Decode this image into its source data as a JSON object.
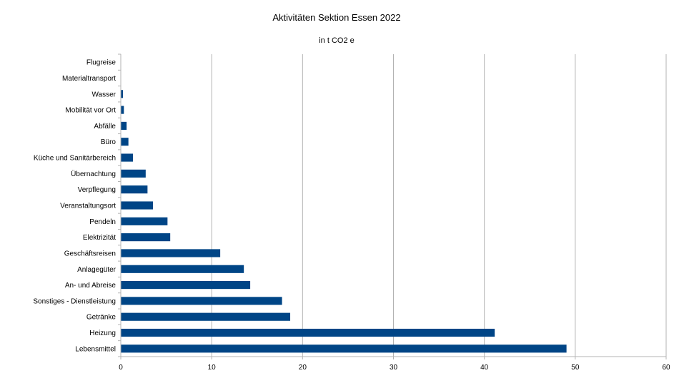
{
  "chart_data": {
    "type": "bar",
    "orientation": "horizontal",
    "title": "Aktivitäten Sektion Essen 2022",
    "subtitle": "in t CO2 e",
    "categories": [
      "Flugreise",
      "Materialtransport",
      "Wasser",
      "Mobilität vor Ort",
      "Abfälle",
      "Büro",
      "Küche und Sanitärbereich",
      "Übernachtung",
      "Verpflegung",
      "Veranstaltungsort",
      "Pendeln",
      "Elektrizität",
      "Geschäftsreisen",
      "Anlagegüter",
      "An- und Abreise",
      "Sonstiges - Dienstleistung",
      "Getränke",
      "Heizung",
      "Lebensmittel"
    ],
    "values": [
      0,
      0,
      0.2,
      0.3,
      0.6,
      0.8,
      1.3,
      2.7,
      2.9,
      3.5,
      5.1,
      5.4,
      10.9,
      13.5,
      14.2,
      17.7,
      18.6,
      41.1,
      49.0
    ],
    "xlim": [
      0,
      60
    ],
    "xticks": [
      "0",
      "10",
      "20",
      "30",
      "40",
      "50",
      "60"
    ],
    "grid": "vertical",
    "bar_color": "#004586",
    "grid_color": "#b3b3b3"
  }
}
